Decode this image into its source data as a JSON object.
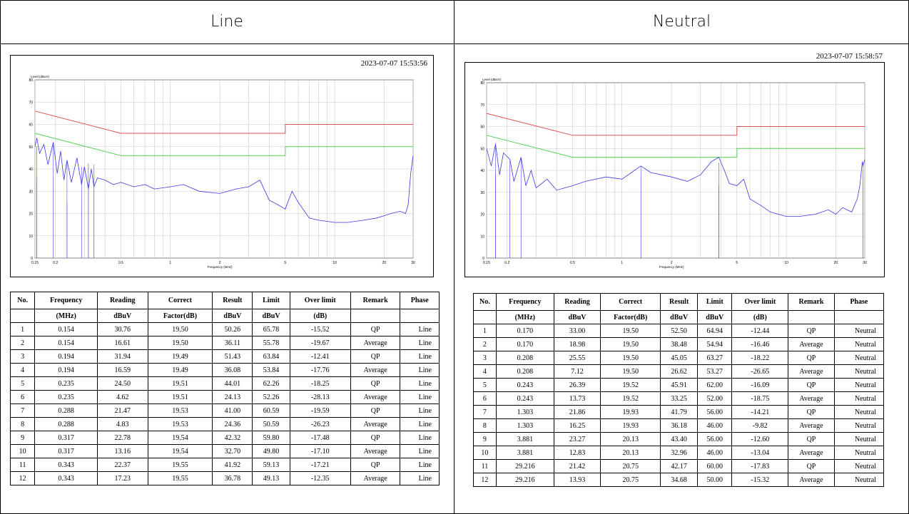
{
  "headers": {
    "left": "Line",
    "right": "Neutral"
  },
  "line": {
    "timestamp": "2023-07-07 15:53:56",
    "plot": {
      "ylabel": "Level (dBuV)",
      "xlabel": "Frequency (MHz)",
      "yticks": [
        "80",
        "70",
        "60",
        "50",
        "40",
        "30",
        "20",
        "10",
        "0"
      ],
      "xticks": [
        "0.15",
        "0.2",
        "0.5",
        "1",
        "2",
        "5",
        "10",
        "20",
        "30"
      ]
    },
    "table": {
      "head1": [
        "No.",
        "Frequency",
        "Reading",
        "Correct",
        "Result",
        "Limit",
        "Over limit",
        "Remark",
        "Phase"
      ],
      "head2": [
        "",
        "(MHz)",
        "dBuV",
        "Factor(dB)",
        "dBuV",
        "dBuV",
        "(dB)",
        "",
        ""
      ],
      "rows": [
        [
          "1",
          "0.154",
          "30.76",
          "19.50",
          "50.26",
          "65.78",
          "-15.52",
          "QP",
          "Line"
        ],
        [
          "2",
          "0.154",
          "16.61",
          "19.50",
          "36.11",
          "55.78",
          "-19.67",
          "Average",
          "Line"
        ],
        [
          "3",
          "0.194",
          "31.94",
          "19.49",
          "51.43",
          "63.84",
          "-12.41",
          "QP",
          "Line"
        ],
        [
          "4",
          "0.194",
          "16.59",
          "19.49",
          "36.08",
          "53.84",
          "-17.76",
          "Average",
          "Line"
        ],
        [
          "5",
          "0.235",
          "24.50",
          "19.51",
          "44.01",
          "62.26",
          "-18.25",
          "QP",
          "Line"
        ],
        [
          "6",
          "0.235",
          "4.62",
          "19.51",
          "24.13",
          "52.26",
          "-28.13",
          "Average",
          "Line"
        ],
        [
          "7",
          "0.288",
          "21.47",
          "19.53",
          "41.00",
          "60.59",
          "-19.59",
          "QP",
          "Line"
        ],
        [
          "8",
          "0.288",
          "4.83",
          "19.53",
          "24.36",
          "50.59",
          "-26.23",
          "Average",
          "Line"
        ],
        [
          "9",
          "0.317",
          "22.78",
          "19.54",
          "42.32",
          "59.80",
          "-17.48",
          "QP",
          "Line"
        ],
        [
          "10",
          "0.317",
          "13.16",
          "19.54",
          "32.70",
          "49.80",
          "-17.10",
          "Average",
          "Line"
        ],
        [
          "11",
          "0.343",
          "22.37",
          "19.55",
          "41.92",
          "59.13",
          "-17.21",
          "QP",
          "Line"
        ],
        [
          "12",
          "0.343",
          "17.23",
          "19.55",
          "36.78",
          "49.13",
          "-12.35",
          "Average",
          "Line"
        ]
      ]
    }
  },
  "neutral": {
    "timestamp": "2023-07-07 15:58:57",
    "plot": {
      "ylabel": "Level (dBuV)",
      "xlabel": "Frequency (MHz)",
      "yticks": [
        "80",
        "70",
        "60",
        "50",
        "40",
        "30",
        "20",
        "10",
        "0"
      ],
      "xticks": [
        "0.15",
        "0.2",
        "0.5",
        "1",
        "2",
        "5",
        "10",
        "20",
        "30"
      ]
    },
    "table": {
      "head1": [
        "No.",
        "Frequency",
        "Reading",
        "Correct",
        "Result",
        "Limit",
        "Over limit",
        "Remark",
        "Phase"
      ],
      "head2": [
        "",
        "(MHz)",
        "dBuV",
        "Factor(dB)",
        "dBuV",
        "dBuV",
        "(dB)",
        "",
        ""
      ],
      "rows": [
        [
          "1",
          "0.170",
          "33.00",
          "19.50",
          "52.50",
          "64.94",
          "-12.44",
          "QP",
          "Neutral"
        ],
        [
          "2",
          "0.170",
          "18.98",
          "19.50",
          "38.48",
          "54.94",
          "-16.46",
          "Average",
          "Neutral"
        ],
        [
          "3",
          "0.208",
          "25.55",
          "19.50",
          "45.05",
          "63.27",
          "-18.22",
          "QP",
          "Neutral"
        ],
        [
          "4",
          "0.208",
          "7.12",
          "19.50",
          "26.62",
          "53.27",
          "-26.65",
          "Average",
          "Neutral"
        ],
        [
          "5",
          "0.243",
          "26.39",
          "19.52",
          "45.91",
          "62.00",
          "-16.09",
          "QP",
          "Neutral"
        ],
        [
          "6",
          "0.243",
          "13.73",
          "19.52",
          "33.25",
          "52.00",
          "-18.75",
          "Average",
          "Neutral"
        ],
        [
          "7",
          "1.303",
          "21.86",
          "19.93",
          "41.79",
          "56.00",
          "-14.21",
          "QP",
          "Neutral"
        ],
        [
          "8",
          "1.303",
          "16.25",
          "19.93",
          "36.18",
          "46.00",
          "-9.82",
          "Average",
          "Neutral"
        ],
        [
          "9",
          "3.881",
          "23.27",
          "20.13",
          "43.40",
          "56.00",
          "-12.60",
          "QP",
          "Neutral"
        ],
        [
          "10",
          "3.881",
          "12.83",
          "20.13",
          "32.96",
          "46.00",
          "-13.04",
          "Average",
          "Neutral"
        ],
        [
          "11",
          "29.216",
          "21.42",
          "20.75",
          "42.17",
          "60.00",
          "-17.83",
          "QP",
          "Neutral"
        ],
        [
          "12",
          "29.216",
          "13.93",
          "20.75",
          "34.68",
          "50.00",
          "-15.32",
          "Average",
          "Neutral"
        ]
      ]
    }
  },
  "chart_data": [
    {
      "type": "line",
      "title": "Line",
      "ylabel": "Level (dBuV)",
      "xlabel": "Frequency (MHz)",
      "xscale": "log",
      "xlim": [
        0.15,
        30
      ],
      "ylim": [
        0,
        80
      ],
      "grid": true,
      "series": [
        {
          "x": [
            0.15,
            0.5,
            0.5,
            5,
            5,
            30
          ],
          "values": [
            66,
            56,
            56,
            56,
            60,
            60
          ],
          "color": "#e05050"
        },
        {
          "x": [
            0.15,
            0.5,
            0.5,
            5,
            5,
            30
          ],
          "values": [
            56,
            46,
            46,
            46,
            50,
            50
          ],
          "color": "#50d050"
        },
        {
          "color": "#3a3adf",
          "x": [
            0.15,
            0.154,
            0.16,
            0.17,
            0.18,
            0.194,
            0.205,
            0.215,
            0.225,
            0.235,
            0.25,
            0.27,
            0.288,
            0.3,
            0.317,
            0.33,
            0.343,
            0.36,
            0.4,
            0.45,
            0.5,
            0.6,
            0.7,
            0.8,
            1.0,
            1.2,
            1.5,
            2.0,
            2.5,
            3.0,
            3.5,
            4.0,
            4.5,
            5.0,
            5.5,
            6.0,
            7.0,
            8.0,
            10,
            12,
            15,
            18,
            20,
            22,
            25,
            27,
            28,
            29,
            30
          ],
          "values": [
            50,
            54,
            47,
            51,
            42,
            52,
            38,
            48,
            35,
            44,
            34,
            45,
            33,
            41,
            31,
            40,
            32,
            36,
            35,
            33,
            34,
            32,
            33,
            31,
            32,
            33,
            30,
            29,
            31,
            32,
            35,
            26,
            24,
            22,
            30,
            25,
            18,
            17,
            16,
            16,
            17,
            18,
            19,
            20,
            21,
            20,
            24,
            38,
            46
          ]
        }
      ]
    },
    {
      "type": "line",
      "title": "Neutral",
      "ylabel": "Level (dBuV)",
      "xlabel": "Frequency (MHz)",
      "xscale": "log",
      "xlim": [
        0.15,
        30
      ],
      "ylim": [
        0,
        80
      ],
      "grid": true,
      "series": [
        {
          "x": [
            0.15,
            0.5,
            0.5,
            5,
            5,
            30
          ],
          "values": [
            66,
            56,
            56,
            56,
            60,
            60
          ],
          "color": "#e05050"
        },
        {
          "x": [
            0.15,
            0.5,
            0.5,
            5,
            5,
            30
          ],
          "values": [
            56,
            46,
            46,
            46,
            50,
            50
          ],
          "color": "#50d050"
        },
        {
          "color": "#3a3adf",
          "x": [
            0.15,
            0.16,
            0.17,
            0.18,
            0.19,
            0.208,
            0.22,
            0.243,
            0.26,
            0.28,
            0.3,
            0.35,
            0.4,
            0.5,
            0.6,
            0.8,
            1.0,
            1.303,
            1.5,
            2.0,
            2.5,
            3.0,
            3.5,
            3.881,
            4.2,
            4.5,
            5.0,
            5.5,
            6.0,
            7.0,
            8.0,
            10,
            12,
            15,
            18,
            20,
            22,
            25,
            27,
            28,
            29,
            29.216,
            30
          ],
          "values": [
            50,
            42,
            52,
            38,
            48,
            45,
            35,
            46,
            33,
            40,
            32,
            36,
            31,
            33,
            35,
            37,
            36,
            42,
            39,
            37,
            35,
            38,
            44,
            46,
            40,
            34,
            33,
            36,
            27,
            24,
            21,
            19,
            19,
            20,
            22,
            20,
            23,
            21,
            27,
            33,
            44,
            42,
            45
          ]
        }
      ]
    }
  ]
}
